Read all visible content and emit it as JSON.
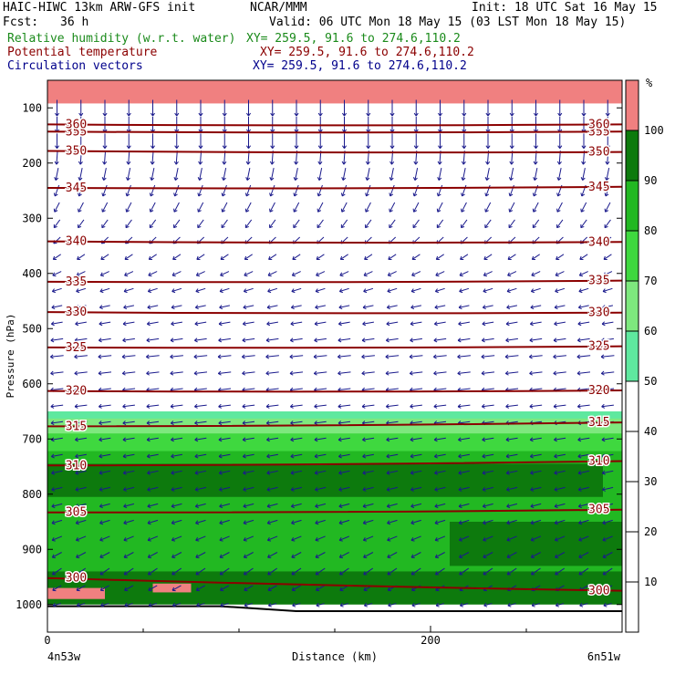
{
  "header": {
    "model": "HAIC-HIWC 13km ARW-GFS init",
    "producer": "NCAR/MMM",
    "init": "Init: 18 UTC Sat 16 May 15",
    "fcst_label": "Fcst:",
    "fcst_value": "36 h",
    "valid": "Valid: 06 UTC Mon 18 May 15 (03 LST Mon 18 May 15)",
    "fields": [
      {
        "name": "Relative humidity (w.r.t. water)",
        "xy": "XY= 259.5, 91.6 to 274.6,110.2",
        "color": "#1a8a1a"
      },
      {
        "name": "Potential temperature",
        "xy": "XY= 259.5, 91.6 to 274.6,110.2",
        "color": "#8b0000"
      },
      {
        "name": "Circulation vectors",
        "xy": "XY= 259.5, 91.6 to 274.6,110.2",
        "color": "#00008b"
      }
    ]
  },
  "chart_data": {
    "type": "cross-section",
    "xlabel": "Distance (km)",
    "ylabel": "Pressure (hPa)",
    "xlim": [
      0,
      300
    ],
    "ylim": [
      1050,
      50
    ],
    "x_ticks": [
      0,
      200
    ],
    "x_minor_ticks": [
      50,
      100,
      150,
      250
    ],
    "y_ticks": [
      100,
      200,
      300,
      400,
      500,
      600,
      700,
      800,
      900,
      1000
    ],
    "x_end_labels": {
      "left": "4n53w",
      "right": "6n51w"
    },
    "rh_colorbar": {
      "unit": "%",
      "levels": [
        10,
        20,
        30,
        40,
        50,
        60,
        70,
        80,
        90,
        100
      ],
      "bins": [
        {
          "from": 0,
          "to": 50,
          "color": "#ffffff"
        },
        {
          "from": 50,
          "to": 60,
          "color": "#5fe89f"
        },
        {
          "from": 60,
          "to": 70,
          "color": "#7ee87e"
        },
        {
          "from": 70,
          "to": 80,
          "color": "#3fd83f"
        },
        {
          "from": 80,
          "to": 90,
          "color": "#22b822"
        },
        {
          "from": 90,
          "to": 100,
          "color": "#0d7a0d"
        },
        {
          "from": 100,
          "to": 110,
          "color": "#f08080"
        }
      ]
    },
    "theta_contours": [
      {
        "value": 300,
        "p_left": 952,
        "p_right": 975
      },
      {
        "value": 305,
        "p_left": 833,
        "p_right": 828
      },
      {
        "value": 310,
        "p_left": 748,
        "p_right": 740
      },
      {
        "value": 315,
        "p_left": 677,
        "p_right": 670
      },
      {
        "value": 320,
        "p_left": 613,
        "p_right": 612
      },
      {
        "value": 325,
        "p_left": 534,
        "p_right": 532
      },
      {
        "value": 330,
        "p_left": 470,
        "p_right": 471
      },
      {
        "value": 335,
        "p_left": 415,
        "p_right": 413
      },
      {
        "value": 340,
        "p_left": 342,
        "p_right": 343
      },
      {
        "value": 345,
        "p_left": 245,
        "p_right": 243
      },
      {
        "value": 350,
        "p_left": 178,
        "p_right": 180
      },
      {
        "value": 355,
        "p_left": 143,
        "p_right": 143
      },
      {
        "value": 360,
        "p_left": 130,
        "p_right": 130
      }
    ],
    "rh_regions": [
      {
        "bin": "50-60",
        "top": 650,
        "bottom": 975
      },
      {
        "bin": "60-70",
        "top": 663,
        "bottom": 975
      },
      {
        "bin": "70-80",
        "top": 690,
        "bottom": 975
      },
      {
        "bin": "80-90",
        "top": 722,
        "bottom": 975
      },
      {
        "bin": "90-100",
        "top": 745,
        "bottom": 805,
        "x_end": 290
      },
      {
        "bin": "90-100",
        "top": 850,
        "bottom": 930,
        "x_start": 210
      },
      {
        "bin": "90-100",
        "top": 940,
        "bottom": 1000
      },
      {
        "bin": ">100",
        "top": 50,
        "bottom": 92
      },
      {
        "bin": ">100",
        "top": 970,
        "bottom": 990,
        "x_start": 0,
        "x_end": 30
      },
      {
        "bin": ">100",
        "top": 962,
        "bottom": 978,
        "x_start": 55,
        "x_end": 75
      }
    ],
    "wind_u_by_level": [
      {
        "p": 110,
        "u": 0.0,
        "w": -2.2
      },
      {
        "p": 170,
        "u": 0.0,
        "w": -2.0
      },
      {
        "p": 250,
        "u": -0.4,
        "w": -1.5
      },
      {
        "p": 350,
        "u": -0.7,
        "w": -0.8
      },
      {
        "p": 450,
        "u": -1.0,
        "w": -0.3
      },
      {
        "p": 550,
        "u": -1.3,
        "w": -0.2
      },
      {
        "p": 650,
        "u": -1.2,
        "w": -0.2
      },
      {
        "p": 750,
        "u": -1.1,
        "w": -0.3
      },
      {
        "p": 850,
        "u": -1.0,
        "w": -0.4
      },
      {
        "p": 950,
        "u": -0.9,
        "w": -0.9
      },
      {
        "p": 1000,
        "u": -0.8,
        "w": -0.3
      }
    ]
  }
}
